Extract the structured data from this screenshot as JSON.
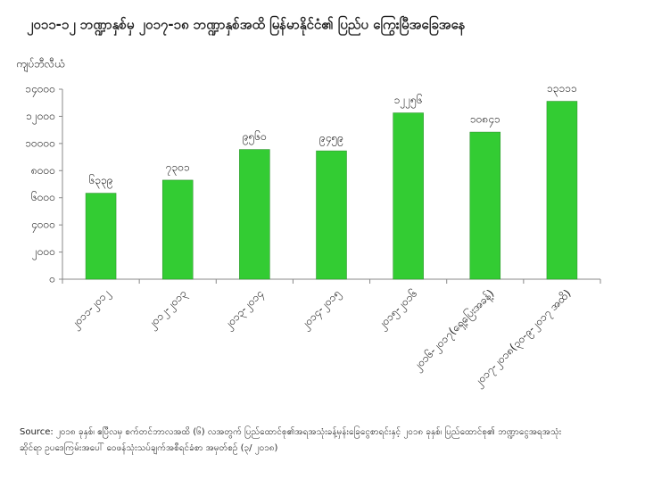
{
  "chart_data": {
    "type": "bar",
    "title": "၂၀၁၁-၁၂ ဘဏ္ဍာနှစ်မှ ၂၀၁၇-၁၈ ဘဏ္ဍာနှစ်အထိ မြန်မာနိုင်ငံ၏ ပြည်ပ ကြွေးမြီအခြေအနေ",
    "y_label": "ကျပ်ဘီလီယံ",
    "categories": [
      "၂၀၁၁-၂၀၁၂",
      "၂၀၁၂-၂၀၁၃",
      "၂၀၁၃-၂၀၁၄",
      "၂၀၁၄-၂၀၁၅",
      "၂၀၁၅-၂၀၁၆",
      "၂၀၁၆-၂၀၁၇(ရှေ့ပြေးအခန့်)",
      "၂၀၁၇-၂၀၁၈(၃၀-၉-၂၀၁၇ အထိ)"
    ],
    "values": [
      6339,
      7301,
      9560,
      9459,
      12256,
      10841,
      13111
    ],
    "value_labels": [
      "၆၃၃၉",
      "၇၃၀၁",
      "၉၅၆၀",
      "၉၄၅၉",
      "၁၂၂၅၆",
      "၁၀၈၄၁",
      "၁၃၁၁၁"
    ],
    "color": "#33cc33",
    "ylim": [
      0,
      14000
    ],
    "yticks": [
      {
        "value": 0,
        "label": "၀"
      },
      {
        "value": 2000,
        "label": "၂၀၀၀"
      },
      {
        "value": 4000,
        "label": "၄၀၀၀"
      },
      {
        "value": 6000,
        "label": "၆၀၀၀"
      },
      {
        "value": 8000,
        "label": "၈၀၀၀"
      },
      {
        "value": 10000,
        "label": "၁၀၀၀၀"
      },
      {
        "value": 12000,
        "label": "၁၂၀၀၀"
      },
      {
        "value": 14000,
        "label": "၁၄၀၀၀"
      }
    ],
    "grid": false,
    "source": "Source: ၂၀၁၈ ခုနှစ်၊ ဧပြီလမှ စက်တင်ဘာလအထိ (၆) လအတွက် ပြည်ထောင်စု၏အရအသုံးခန့်မှန်းခြေငွေစာရင်းနှင့် ၂၀၁၈ ခုနှစ်၊ ပြည်ထောင်စု၏ ဘဏ္ဍာငွေအရအသုံး",
    "source_line2": "ဆိုင်ရာ ဥပဒေကြမ်းအပေါ် ဝေဖန်သုံးသပ်ချက်အစီရင်ခံစာ အမှတ်စဉ် (၃/ ၂၀၁၈)"
  }
}
